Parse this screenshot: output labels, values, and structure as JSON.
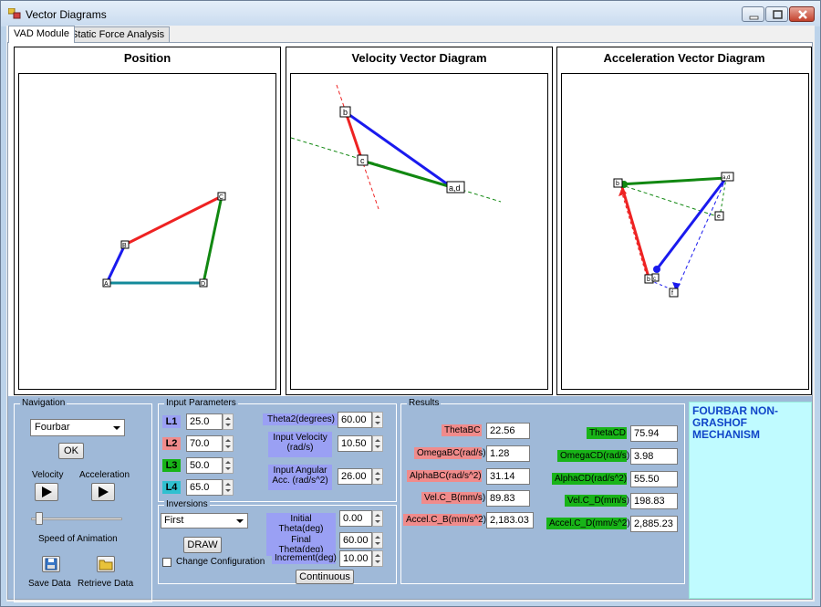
{
  "window": {
    "title": "Vector Diagrams"
  },
  "tabs": [
    {
      "label": "VAD Module",
      "active": true
    },
    {
      "label": "Static Force Analysis",
      "active": false
    }
  ],
  "panels": {
    "position": {
      "title": "Position"
    },
    "velocity": {
      "title": "Velocity Vector Diagram"
    },
    "acceleration": {
      "title": "Acceleration Vector Diagram"
    }
  },
  "diagram_labels": {
    "position": {
      "A": "A",
      "B": "B",
      "C": "C",
      "D": "D"
    },
    "velocity": {
      "b": "b",
      "c": "c",
      "ad": "a,d"
    },
    "acceleration": {
      "b": "b",
      "c": "c",
      "ad": "a,d",
      "ab": "b",
      "e": "e",
      "f": "f"
    }
  },
  "colors": {
    "link2": "#ee2222",
    "link3": "#118811",
    "link_ab": "#1a1aee",
    "ground": "#138a9a",
    "info_text": "#1045c8"
  },
  "navigation": {
    "group_title": "Navigation",
    "mechanism_value": "Fourbar",
    "ok_label": "OK",
    "velocity_label": "Velocity",
    "acceleration_label": "Acceleration",
    "speed_label": "Speed of Animation",
    "speed_level": 0.05,
    "save_label": "Save Data",
    "retrieve_label": "Retrieve Data"
  },
  "input_parameters": {
    "group_title": "Input Parameters",
    "links": [
      {
        "label": "L1",
        "value": "25.0",
        "color": "#9aa0f4"
      },
      {
        "label": "L2",
        "value": "70.0",
        "color": "#f08b8b"
      },
      {
        "label": "L3",
        "value": "50.0",
        "color": "#18b418"
      },
      {
        "label": "L4",
        "value": "65.0",
        "color": "#30c0d0"
      }
    ],
    "theta2_label": "Theta2(degrees)",
    "theta2_value": "60.00",
    "input_velocity_label": "Input Velocity (rad/s)",
    "input_velocity_value": "10.50",
    "input_acc_label": "Input Angular Acc. (rad/s^2)",
    "input_acc_value": "26.00"
  },
  "inversions": {
    "group_title": "Inversions",
    "selected": "First",
    "draw_label": "DRAW",
    "change_config_label": "Change Configuration",
    "change_config_checked": false,
    "initial_theta_label": "Initial Theta(deg)",
    "initial_theta_value": "0.00",
    "final_theta_label": "Final Theta(deg)",
    "final_theta_value": "60.00",
    "increment_label": "Increment(deg)",
    "increment_value": "10.00",
    "continuous_label": "Continuous"
  },
  "results": {
    "group_title": "Results",
    "left": [
      {
        "label": "ThetaBC",
        "value": "22.56"
      },
      {
        "label": "OmegaBC(rad/s)",
        "value": "1.28"
      },
      {
        "label": "AlphaBC(rad/s^2)",
        "value": "31.14"
      },
      {
        "label": "Vel.C_B(mm/s)",
        "value": "89.83"
      },
      {
        "label": "Accel.C_B(mm/s^2)",
        "value": "2,183.03"
      }
    ],
    "right": [
      {
        "label": "ThetaCD",
        "value": "75.94"
      },
      {
        "label": "OmegaCD(rad/s)",
        "value": "3.98"
      },
      {
        "label": "AlphaCD(rad/s^2)",
        "value": "55.50"
      },
      {
        "label": "Vel.C_D(mm/s)",
        "value": "198.83"
      },
      {
        "label": "Accel.C_D(mm/s^2)",
        "value": "2,885.23"
      }
    ]
  },
  "info": {
    "text": "FOURBAR NON-GRASHOF MECHANISM"
  }
}
